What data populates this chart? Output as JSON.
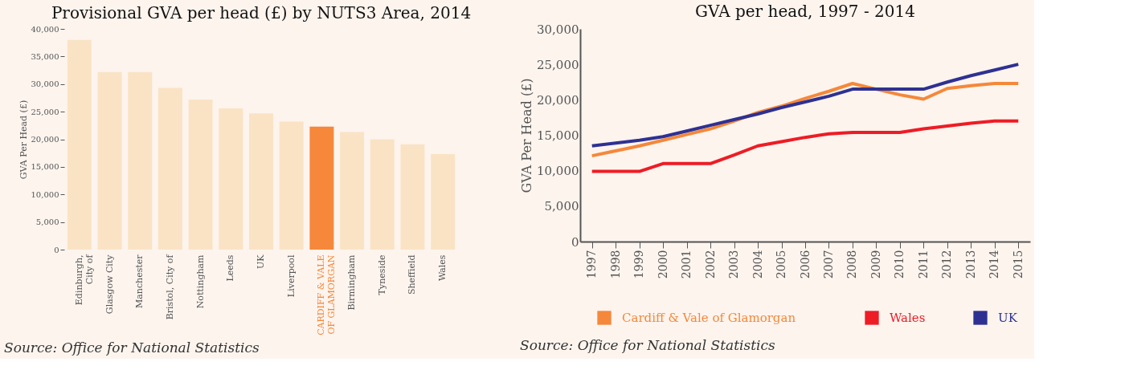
{
  "chart_data": [
    {
      "type": "bar",
      "title": "Provisional GVA per head (£) by NUTS3 Area, 2014",
      "ylabel": "GVA Per Head (£)",
      "categories": [
        "Edinburgh, City of",
        "Glasgow City",
        "Manchester",
        "Bristol, City of",
        "Nottingham",
        "Leeds",
        "UK",
        "Liverpool",
        "CARDIFF & VALE OF GLAMORGAN",
        "Birmingham",
        "Tyneside",
        "Sheffield",
        "Wales"
      ],
      "values": [
        38000,
        32200,
        32200,
        29300,
        27200,
        25600,
        24700,
        23200,
        22300,
        21300,
        20000,
        19100,
        17300
      ],
      "colors": [
        "#fae3c5",
        "#fae3c5",
        "#fae3c5",
        "#fae3c5",
        "#fae3c5",
        "#fae3c5",
        "#fae3c5",
        "#fae3c5",
        "#f5883a",
        "#fae3c5",
        "#fae3c5",
        "#fae3c5",
        "#fae3c5"
      ],
      "ylim": [
        0,
        40000
      ],
      "yticks": [
        0,
        {
          "value": 5000,
          "label": "5,000"
        },
        {
          "value": 10000,
          "label": "10,000"
        },
        {
          "value": 15000,
          "label": "15,000"
        },
        {
          "value": 20000,
          "label": "20,000"
        },
        {
          "value": 25000,
          "label": "25,000"
        },
        {
          "value": 30000,
          "label": "30,000"
        },
        {
          "value": 35000,
          "label": "35,000"
        },
        {
          "value": 40000,
          "label": "40,000"
        }
      ],
      "annotations": [
        "Source: Office for National Statistics"
      ]
    },
    {
      "type": "line",
      "title": "GVA per head, 1997 - 2014",
      "ylabel": "GVA Per Head (£)",
      "categories": [
        "1997",
        "1998",
        "1999",
        "2000",
        "2001",
        "2002",
        "2003",
        "2004",
        "2005",
        "2006",
        "2007",
        "2008",
        "2009",
        "2010",
        "2011",
        "2012",
        "2013",
        "2014",
        "2015"
      ],
      "series": [
        {
          "name": "Cardiff & Vale of Glamorgan",
          "color": "#f5883a",
          "values": [
            12100,
            12800,
            13500,
            14300,
            15100,
            15900,
            17000,
            18200,
            19100,
            20200,
            21200,
            22300,
            21500,
            20700,
            20100,
            21600,
            22000,
            22300,
            22300
          ]
        },
        {
          "name": "Wales",
          "color": "#ee1c25",
          "values": [
            9900,
            9900,
            9900,
            11000,
            11000,
            11000,
            12200,
            13500,
            14100,
            14700,
            15200,
            15400,
            15400,
            15400,
            15900,
            16300,
            16700,
            17000,
            17000
          ]
        },
        {
          "name": "UK",
          "color": "#2e3192",
          "values": [
            13500,
            13900,
            14300,
            14800,
            15600,
            16400,
            17200,
            18000,
            18900,
            19700,
            20500,
            21500,
            21500,
            21500,
            21500,
            22500,
            23400,
            24200,
            25000
          ]
        }
      ],
      "ylim": [
        0,
        30000
      ],
      "yticks": [
        0,
        {
          "value": 5000,
          "label": "5,000"
        },
        {
          "value": 10000,
          "label": "10,000"
        },
        {
          "value": 15000,
          "label": "15,000"
        },
        {
          "value": 20000,
          "label": "20,000"
        },
        {
          "value": 25000,
          "label": "25,000"
        },
        {
          "value": 30000,
          "label": "30,000"
        }
      ],
      "legend": "bottom",
      "annotations": [
        "Source: Office for National Statistics"
      ]
    }
  ]
}
